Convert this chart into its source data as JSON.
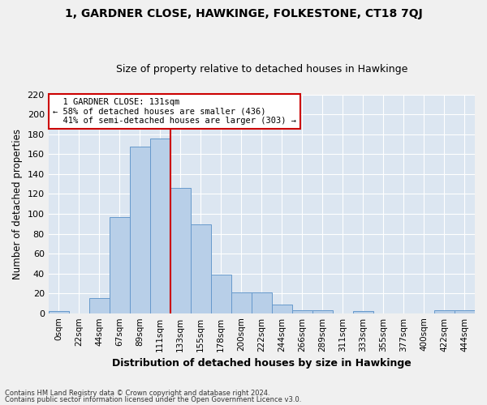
{
  "title": "1, GARDNER CLOSE, HAWKINGE, FOLKESTONE, CT18 7QJ",
  "subtitle": "Size of property relative to detached houses in Hawkinge",
  "xlabel": "Distribution of detached houses by size in Hawkinge",
  "ylabel": "Number of detached properties",
  "bar_color": "#b8cfe8",
  "bar_edge_color": "#6699cc",
  "background_color": "#dce6f1",
  "grid_color": "#ffffff",
  "fig_color": "#f0f0f0",
  "bins": [
    "0sqm",
    "22sqm",
    "44sqm",
    "67sqm",
    "89sqm",
    "111sqm",
    "133sqm",
    "155sqm",
    "178sqm",
    "200sqm",
    "222sqm",
    "244sqm",
    "266sqm",
    "289sqm",
    "311sqm",
    "333sqm",
    "355sqm",
    "377sqm",
    "400sqm",
    "422sqm",
    "444sqm"
  ],
  "values": [
    2,
    0,
    15,
    97,
    168,
    176,
    126,
    89,
    39,
    21,
    21,
    9,
    3,
    3,
    0,
    2,
    0,
    0,
    0,
    3,
    3
  ],
  "ylim": [
    0,
    220
  ],
  "yticks": [
    0,
    20,
    40,
    60,
    80,
    100,
    120,
    140,
    160,
    180,
    200,
    220
  ],
  "property_label": "1 GARDNER CLOSE: 131sqm",
  "pct_smaller": "58% of detached houses are smaller (436)",
  "pct_larger": "41% of semi-detached houses are larger (303)",
  "annotation_box_color": "#ffffff",
  "annotation_box_edge": "#cc0000",
  "property_line_color": "#cc0000",
  "footnote1": "Contains HM Land Registry data © Crown copyright and database right 2024.",
  "footnote2": "Contains public sector information licensed under the Open Government Licence v3.0.",
  "prop_bin_index": 6
}
